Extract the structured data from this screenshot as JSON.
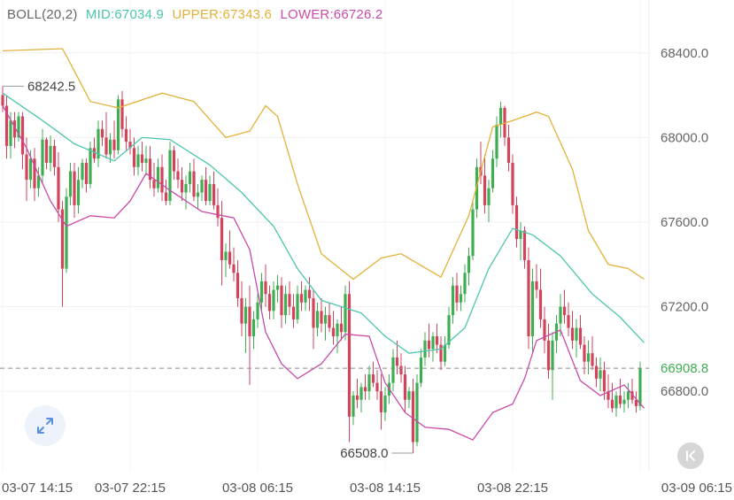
{
  "indicator": {
    "name": "BOLL(20,2)",
    "mid": "MID:67034.9",
    "upper": "UPPER:67343.6",
    "lower": "LOWER:66726.2"
  },
  "colors": {
    "up": "#3fae52",
    "down": "#d2435c",
    "mid": "#4cc6ad",
    "upper": "#e3b13a",
    "lower": "#c84aa8",
    "text": "#666666",
    "current_price_tag": "#3fae52"
  },
  "icons": {
    "expand": "expand-arrows-icon",
    "scroll_to_latest": "scroll-to-latest-icon"
  },
  "chart_data": {
    "type": "candlestick",
    "price_axis": {
      "ticks": [
        "68400.0",
        "68000.0",
        "67600.0",
        "67200.0",
        "66800.0"
      ],
      "tick_values": [
        68400,
        68000,
        67600,
        67200,
        66800
      ],
      "ylim": [
        66420,
        68650
      ],
      "side": "right"
    },
    "time_axis": {
      "labels": [
        "03-07 14:15",
        "03-07 22:15",
        "03-08 06:15",
        "03-08 14:15",
        "03-08 22:15",
        "03-09 06:15"
      ],
      "label_indices": [
        0,
        32,
        64,
        96,
        128,
        160
      ]
    },
    "current_price": 66908.8,
    "current_price_label": "66908.8",
    "max_marker": {
      "label": "68242.5",
      "value": 68242.5,
      "index": 0
    },
    "min_marker": {
      "label": "66508.0",
      "value": 66508.0,
      "index": 103
    },
    "bollinger_bands": {
      "upper": [
        [
          0,
          68410
        ],
        [
          15,
          68420
        ],
        [
          17,
          68350
        ],
        [
          22,
          68170
        ],
        [
          29,
          68140
        ],
        [
          40,
          68210
        ],
        [
          48,
          68170
        ],
        [
          56,
          68000
        ],
        [
          62,
          68030
        ],
        [
          66,
          68150
        ],
        [
          69,
          68100
        ],
        [
          74,
          67780
        ],
        [
          80,
          67450
        ],
        [
          88,
          67330
        ],
        [
          95,
          67430
        ],
        [
          100,
          67450
        ],
        [
          110,
          67340
        ],
        [
          117,
          67630
        ],
        [
          123,
          68050
        ],
        [
          128,
          68080
        ],
        [
          134,
          68120
        ],
        [
          137,
          68100
        ],
        [
          143,
          67850
        ],
        [
          147,
          67560
        ],
        [
          152,
          67400
        ],
        [
          157,
          67380
        ],
        [
          161,
          67330
        ]
      ],
      "mid": [
        [
          0,
          68210
        ],
        [
          10,
          68080
        ],
        [
          18,
          67970
        ],
        [
          28,
          67890
        ],
        [
          35,
          68000
        ],
        [
          42,
          67990
        ],
        [
          52,
          67870
        ],
        [
          60,
          67740
        ],
        [
          68,
          67580
        ],
        [
          74,
          67380
        ],
        [
          80,
          67230
        ],
        [
          90,
          67170
        ],
        [
          96,
          67060
        ],
        [
          102,
          66980
        ],
        [
          110,
          67000
        ],
        [
          116,
          67100
        ],
        [
          122,
          67380
        ],
        [
          128,
          67570
        ],
        [
          133,
          67540
        ],
        [
          140,
          67440
        ],
        [
          148,
          67260
        ],
        [
          155,
          67150
        ],
        [
          161,
          67030
        ]
      ],
      "lower": [
        [
          0,
          68150
        ],
        [
          6,
          67950
        ],
        [
          12,
          67700
        ],
        [
          16,
          67580
        ],
        [
          22,
          67630
        ],
        [
          28,
          67620
        ],
        [
          32,
          67700
        ],
        [
          36,
          67830
        ],
        [
          42,
          67750
        ],
        [
          50,
          67650
        ],
        [
          58,
          67620
        ],
        [
          62,
          67470
        ],
        [
          66,
          67080
        ],
        [
          70,
          66930
        ],
        [
          74,
          66860
        ],
        [
          80,
          66930
        ],
        [
          86,
          67070
        ],
        [
          92,
          67060
        ],
        [
          96,
          66840
        ],
        [
          101,
          66700
        ],
        [
          106,
          66630
        ],
        [
          112,
          66620
        ],
        [
          118,
          66570
        ],
        [
          123,
          66700
        ],
        [
          128,
          66740
        ],
        [
          131,
          66860
        ],
        [
          134,
          67040
        ],
        [
          140,
          67090
        ],
        [
          145,
          66850
        ],
        [
          150,
          66780
        ],
        [
          156,
          66830
        ],
        [
          161,
          66720
        ]
      ]
    },
    "candles": [
      [
        68200,
        68242,
        68120,
        68150
      ],
      [
        68150,
        68200,
        67900,
        67960
      ],
      [
        67960,
        68120,
        67900,
        68080
      ],
      [
        68080,
        68120,
        67950,
        68000
      ],
      [
        68000,
        68120,
        67980,
        68100
      ],
      [
        68100,
        68120,
        67850,
        67920
      ],
      [
        67920,
        68000,
        67700,
        67800
      ],
      [
        67800,
        67940,
        67760,
        67900
      ],
      [
        67900,
        67950,
        67700,
        67760
      ],
      [
        67760,
        67860,
        67720,
        67820
      ],
      [
        67820,
        68040,
        67780,
        67990
      ],
      [
        67990,
        68000,
        67850,
        67880
      ],
      [
        67880,
        68010,
        67840,
        67960
      ],
      [
        67960,
        67990,
        67820,
        67860
      ],
      [
        67860,
        67930,
        67600,
        67660
      ],
      [
        67660,
        67700,
        67200,
        67380
      ],
      [
        67380,
        67760,
        67360,
        67720
      ],
      [
        67720,
        67880,
        67680,
        67840
      ],
      [
        67840,
        67880,
        67620,
        67680
      ],
      [
        67680,
        67860,
        67640,
        67800
      ],
      [
        67800,
        67900,
        67760,
        67880
      ],
      [
        67880,
        67900,
        67740,
        67780
      ],
      [
        67780,
        67980,
        67760,
        67950
      ],
      [
        67950,
        68000,
        67880,
        67900
      ],
      [
        67900,
        68080,
        67860,
        68040
      ],
      [
        68040,
        68080,
        67960,
        68000
      ],
      [
        68000,
        68120,
        67900,
        67920
      ],
      [
        67920,
        68020,
        67880,
        67990
      ],
      [
        67990,
        68080,
        67900,
        67940
      ],
      [
        67940,
        68200,
        67920,
        68180
      ],
      [
        68180,
        68220,
        68000,
        68040
      ],
      [
        68040,
        68100,
        67940,
        67980
      ],
      [
        67980,
        68040,
        67920,
        67950
      ],
      [
        67950,
        68000,
        67820,
        67860
      ],
      [
        67860,
        67960,
        67820,
        67920
      ],
      [
        67920,
        67980,
        67840,
        67880
      ],
      [
        67880,
        67960,
        67820,
        67900
      ],
      [
        67900,
        67960,
        67760,
        67800
      ],
      [
        67800,
        67880,
        67720,
        67760
      ],
      [
        67760,
        67900,
        67740,
        67860
      ],
      [
        67860,
        67920,
        67700,
        67740
      ],
      [
        67740,
        67800,
        67680,
        67700
      ],
      [
        67700,
        67980,
        67680,
        67940
      ],
      [
        67940,
        67960,
        67800,
        67840
      ],
      [
        67840,
        67900,
        67760,
        67800
      ],
      [
        67800,
        67860,
        67700,
        67740
      ],
      [
        67740,
        67820,
        67660,
        67780
      ],
      [
        67780,
        67880,
        67740,
        67840
      ],
      [
        67840,
        67900,
        67700,
        67720
      ],
      [
        67720,
        67780,
        67660,
        67740
      ],
      [
        67740,
        67820,
        67700,
        67800
      ],
      [
        67800,
        67860,
        67680,
        67700
      ],
      [
        67700,
        67820,
        67680,
        67780
      ],
      [
        67780,
        67840,
        67660,
        67680
      ],
      [
        67680,
        67760,
        67580,
        67620
      ],
      [
        67620,
        67700,
        67300,
        67420
      ],
      [
        67420,
        67500,
        67340,
        67460
      ],
      [
        67460,
        67560,
        67380,
        67400
      ],
      [
        67400,
        67480,
        67320,
        67360
      ],
      [
        67360,
        67420,
        67200,
        67240
      ],
      [
        67240,
        67320,
        67060,
        67120
      ],
      [
        67120,
        67240,
        66980,
        67200
      ],
      [
        67200,
        67300,
        66830,
        67060
      ],
      [
        67060,
        67180,
        67000,
        67140
      ],
      [
        67140,
        67260,
        67100,
        67220
      ],
      [
        67220,
        67360,
        67180,
        67320
      ],
      [
        67320,
        67400,
        67200,
        67260
      ],
      [
        67260,
        67300,
        67140,
        67180
      ],
      [
        67180,
        67320,
        67140,
        67280
      ],
      [
        67280,
        67350,
        67220,
        67300
      ],
      [
        67300,
        67340,
        67100,
        67160
      ],
      [
        67160,
        67300,
        67120,
        67260
      ],
      [
        67260,
        67320,
        67160,
        67200
      ],
      [
        67200,
        67260,
        67100,
        67140
      ],
      [
        67140,
        67300,
        67120,
        67260
      ],
      [
        67260,
        67320,
        67180,
        67220
      ],
      [
        67220,
        67300,
        67180,
        67280
      ],
      [
        67280,
        67340,
        67180,
        67240
      ],
      [
        67240,
        67280,
        67000,
        67100
      ],
      [
        67100,
        67220,
        67060,
        67180
      ],
      [
        67180,
        67240,
        67080,
        67120
      ],
      [
        67120,
        67200,
        67040,
        67160
      ],
      [
        67160,
        67220,
        67080,
        67100
      ],
      [
        67100,
        67180,
        67020,
        67060
      ],
      [
        67060,
        67140,
        66980,
        67120
      ],
      [
        67120,
        67200,
        67040,
        67080
      ],
      [
        67080,
        67300,
        67040,
        67260
      ],
      [
        67260,
        67320,
        66560,
        66680
      ],
      [
        66680,
        66800,
        66640,
        66780
      ],
      [
        66780,
        66860,
        66720,
        66760
      ],
      [
        66760,
        66840,
        66700,
        66820
      ],
      [
        66820,
        66880,
        66760,
        66800
      ],
      [
        66800,
        66920,
        66760,
        66880
      ],
      [
        66880,
        66940,
        66820,
        66840
      ],
      [
        66840,
        66900,
        66760,
        66800
      ],
      [
        66800,
        66880,
        66620,
        66700
      ],
      [
        66700,
        66820,
        66660,
        66780
      ],
      [
        66780,
        66880,
        66740,
        66840
      ],
      [
        66840,
        67000,
        66800,
        66960
      ],
      [
        66960,
        67040,
        66880,
        66920
      ],
      [
        66920,
        66980,
        66840,
        66880
      ],
      [
        66880,
        66920,
        66700,
        66760
      ],
      [
        66760,
        66820,
        66720,
        66800
      ],
      [
        66800,
        66860,
        66508,
        66560
      ],
      [
        66560,
        66880,
        66540,
        66840
      ],
      [
        66840,
        67000,
        66820,
        66960
      ],
      [
        66960,
        67080,
        66920,
        67040
      ],
      [
        67040,
        67120,
        66960,
        67000
      ],
      [
        67000,
        67080,
        66940,
        67060
      ],
      [
        67060,
        67120,
        66980,
        67020
      ],
      [
        67020,
        67060,
        66900,
        66940
      ],
      [
        66940,
        67060,
        66920,
        67020
      ],
      [
        67020,
        67200,
        67000,
        67160
      ],
      [
        67160,
        67340,
        67120,
        67300
      ],
      [
        67300,
        67360,
        67180,
        67220
      ],
      [
        67220,
        67300,
        67180,
        67260
      ],
      [
        67260,
        67400,
        67220,
        67360
      ],
      [
        67360,
        67480,
        67300,
        67440
      ],
      [
        67440,
        67700,
        67420,
        67660
      ],
      [
        67660,
        67900,
        67620,
        67860
      ],
      [
        67860,
        67980,
        67780,
        67820
      ],
      [
        67820,
        67920,
        67640,
        67680
      ],
      [
        67680,
        67800,
        67600,
        67760
      ],
      [
        67760,
        67940,
        67740,
        67900
      ],
      [
        67900,
        68100,
        67860,
        68060
      ],
      [
        68060,
        68170,
        68000,
        68140
      ],
      [
        68140,
        68150,
        67960,
        68000
      ],
      [
        68000,
        68060,
        67840,
        67880
      ],
      [
        67880,
        67920,
        67640,
        67680
      ],
      [
        67680,
        67720,
        67480,
        67520
      ],
      [
        67520,
        67600,
        67420,
        67560
      ],
      [
        67560,
        67580,
        67380,
        67420
      ],
      [
        67420,
        67480,
        67000,
        67060
      ],
      [
        67060,
        67380,
        66980,
        67320
      ],
      [
        67320,
        67400,
        67240,
        67280
      ],
      [
        67280,
        67380,
        67100,
        67140
      ],
      [
        67140,
        67200,
        66980,
        67040
      ],
      [
        67040,
        67120,
        66860,
        66900
      ],
      [
        66900,
        67080,
        66760,
        67040
      ],
      [
        67040,
        67160,
        66980,
        67120
      ],
      [
        67120,
        67260,
        67060,
        67200
      ],
      [
        67200,
        67280,
        67120,
        67160
      ],
      [
        67160,
        67220,
        67060,
        67100
      ],
      [
        67100,
        67180,
        67000,
        67040
      ],
      [
        67040,
        67140,
        66960,
        67100
      ],
      [
        67100,
        67160,
        67000,
        67020
      ],
      [
        67020,
        67060,
        66880,
        66940
      ],
      [
        66940,
        67040,
        66880,
        66980
      ],
      [
        66980,
        67060,
        66900,
        66920
      ],
      [
        66920,
        66960,
        66820,
        66860
      ],
      [
        66860,
        66960,
        66800,
        66900
      ],
      [
        66900,
        66940,
        66760,
        66800
      ],
      [
        66800,
        66880,
        66720,
        66760
      ],
      [
        66760,
        66840,
        66700,
        66720
      ],
      [
        66720,
        66800,
        66680,
        66780
      ],
      [
        66780,
        66860,
        66720,
        66740
      ],
      [
        66740,
        66800,
        66700,
        66760
      ],
      [
        66760,
        66840,
        66720,
        66800
      ],
      [
        66800,
        66860,
        66740,
        66760
      ],
      [
        66760,
        66800,
        66700,
        66730
      ],
      [
        66730,
        66940,
        66710,
        66908
      ]
    ]
  }
}
